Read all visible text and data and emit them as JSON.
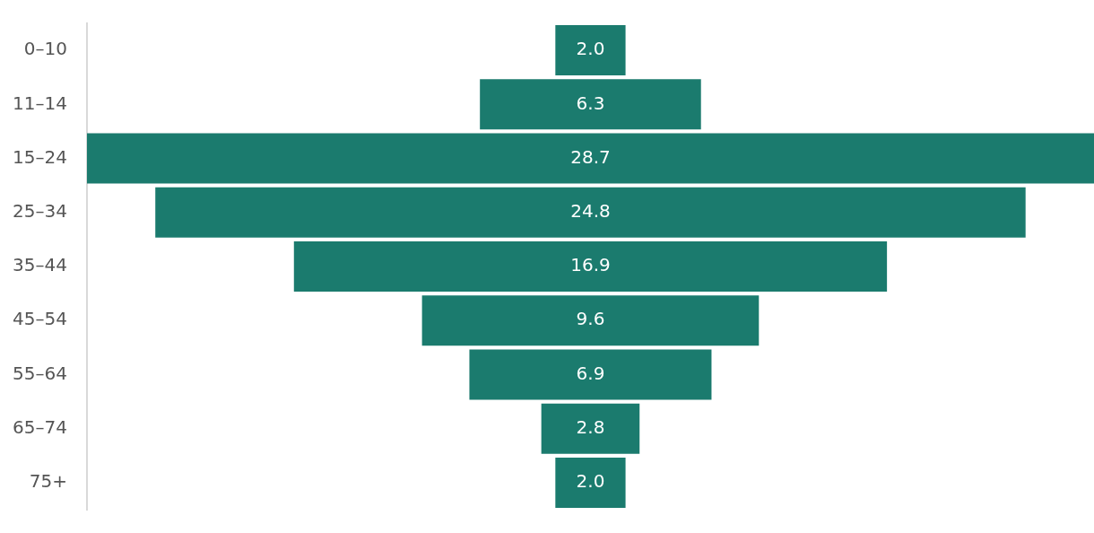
{
  "chart_data": {
    "type": "other",
    "categories": [
      "0–10",
      "11–14",
      "15–24",
      "25–34",
      "35–44",
      "45–54",
      "55–64",
      "65–74",
      "75+"
    ],
    "values": [
      2.0,
      6.3,
      28.7,
      24.8,
      16.9,
      9.6,
      6.9,
      2.8,
      2.0
    ],
    "value_labels": [
      "2.0",
      "6.3",
      "28.7",
      "24.8",
      "16.9",
      "9.6",
      "6.9",
      "2.8",
      "2.0"
    ],
    "color": "#1b7b6e"
  }
}
